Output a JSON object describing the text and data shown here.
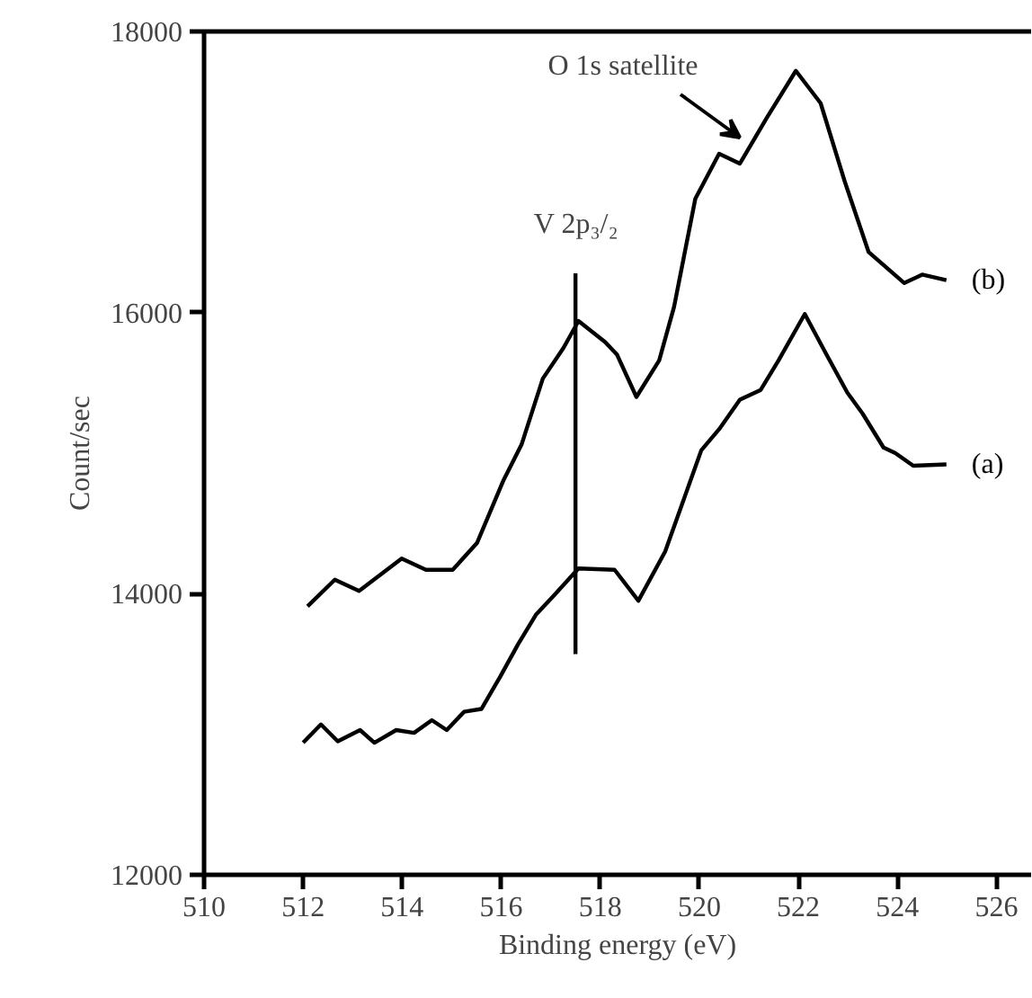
{
  "chart_data": {
    "type": "line",
    "xlabel": "Binding energy (eV)",
    "ylabel": "Count/sec",
    "xlim": [
      510,
      526.7
    ],
    "ylim": [
      12000,
      18000
    ],
    "xticks": [
      510,
      512,
      514,
      516,
      518,
      520,
      522,
      524,
      526
    ],
    "yticks": [
      12000,
      14000,
      16000,
      18000
    ],
    "grid": false,
    "marker": "none",
    "line_style": "solid",
    "annotations": [
      "O 1s satellite",
      "V 2p₃/₂"
    ],
    "series": [
      {
        "name": "(a)",
        "color": "#000000",
        "x": [
          512.0,
          512.36,
          512.7,
          513.15,
          513.44,
          513.88,
          514.24,
          514.6,
          514.9,
          515.25,
          515.6,
          515.98,
          516.34,
          516.7,
          517.07,
          517.56,
          518.29,
          518.77,
          519.31,
          520.04,
          520.4,
          520.82,
          521.24,
          521.6,
          522.13,
          522.57,
          522.99,
          523.3,
          523.72,
          523.96,
          524.32,
          524.99
        ],
        "values": [
          12940,
          13070,
          12950,
          13030,
          12940,
          13030,
          13010,
          13100,
          13030,
          13160,
          13180,
          13410,
          13640,
          13850,
          13990,
          14180,
          14170,
          13950,
          14300,
          15020,
          15170,
          15380,
          15450,
          15660,
          15990,
          15700,
          15430,
          15280,
          15040,
          15000,
          14910,
          14920
        ]
      },
      {
        "name": "(b)",
        "color": "#000000",
        "x": [
          512.09,
          512.64,
          513.13,
          513.99,
          514.48,
          515.02,
          515.51,
          516.05,
          516.41,
          516.84,
          517.26,
          517.56,
          518.1,
          518.34,
          518.73,
          519.19,
          519.49,
          519.92,
          520.4,
          520.82,
          521.37,
          521.95,
          522.45,
          522.93,
          523.42,
          523.78,
          524.14,
          524.5,
          524.99
        ],
        "values": [
          13910,
          14100,
          14020,
          14250,
          14170,
          14170,
          14360,
          14810,
          15060,
          15530,
          15750,
          15940,
          15790,
          15700,
          15400,
          15660,
          16040,
          16810,
          17130,
          17060,
          17390,
          17720,
          17490,
          16940,
          16430,
          16320,
          16210,
          16270,
          16230
        ]
      },
      {
        "type": "line",
        "color": "#000000",
        "x": [
          517.5,
          517.5
        ],
        "values": [
          13570,
          16280
        ]
      }
    ]
  }
}
